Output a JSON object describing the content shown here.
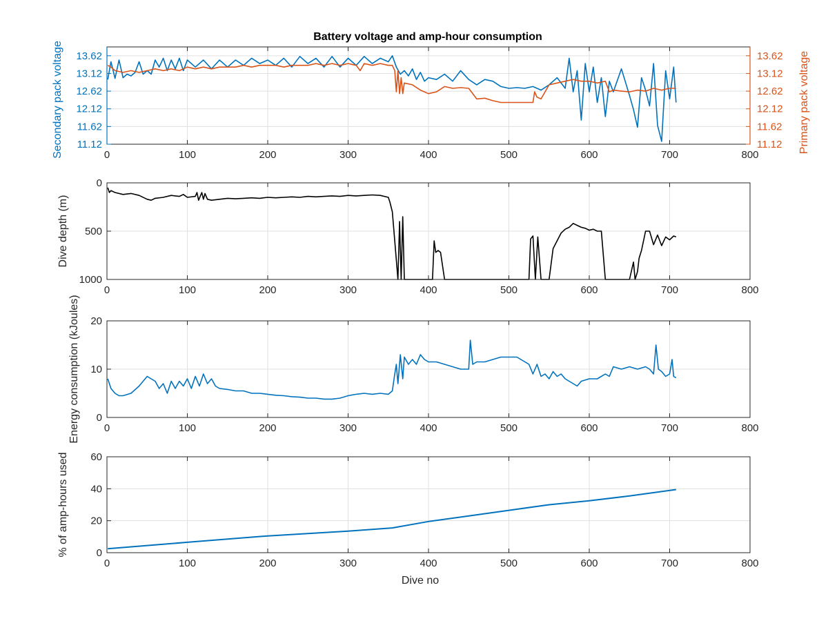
{
  "figure": {
    "title": "Battery voltage and amp-hour consumption",
    "colors": {
      "blue": "#0072bd",
      "orange": "#d95319",
      "black": "#000000",
      "axis": "#262626",
      "grid": "#dfdfdf"
    }
  },
  "chart_data": [
    {
      "type": "line",
      "title": "Battery voltage and amp-hour consumption",
      "xlabel": "",
      "ylabel": "Secondary pack voltage",
      "ylabel_right": "Primary pack voltage",
      "xlim": [
        0,
        800
      ],
      "ylim": [
        11.12,
        13.87
      ],
      "xticks": [
        0,
        100,
        200,
        300,
        400,
        500,
        600,
        700,
        800
      ],
      "yticks": [
        11.12,
        11.62,
        12.12,
        12.62,
        13.12,
        13.62
      ],
      "ytick_labels": [
        "11.12",
        "11.62",
        "12.12",
        "12.62",
        "13.12",
        "13.62"
      ],
      "grid": true,
      "series": [
        {
          "color": "#0072bd",
          "axis": "left",
          "x": [
            1,
            5,
            10,
            15,
            20,
            25,
            30,
            35,
            40,
            45,
            50,
            55,
            60,
            65,
            70,
            75,
            80,
            85,
            90,
            95,
            100,
            110,
            120,
            130,
            140,
            150,
            160,
            170,
            180,
            190,
            200,
            210,
            220,
            230,
            240,
            250,
            260,
            270,
            280,
            290,
            300,
            310,
            320,
            330,
            340,
            350,
            355,
            360,
            365,
            370,
            375,
            380,
            385,
            390,
            395,
            400,
            410,
            420,
            430,
            440,
            450,
            460,
            470,
            480,
            490,
            500,
            510,
            520,
            530,
            540,
            550,
            560,
            570,
            575,
            580,
            585,
            590,
            595,
            600,
            605,
            610,
            615,
            620,
            625,
            630,
            640,
            650,
            655,
            660,
            665,
            670,
            675,
            680,
            685,
            690,
            695,
            700,
            705,
            708
          ],
          "values": [
            12.95,
            13.45,
            12.98,
            13.5,
            13.0,
            13.1,
            13.05,
            13.15,
            13.45,
            13.1,
            13.2,
            13.1,
            13.5,
            13.3,
            13.55,
            13.2,
            13.5,
            13.25,
            13.55,
            13.2,
            13.5,
            13.3,
            13.5,
            13.25,
            13.5,
            13.3,
            13.5,
            13.35,
            13.55,
            13.4,
            13.5,
            13.35,
            13.55,
            13.3,
            13.6,
            13.4,
            13.55,
            13.3,
            13.6,
            13.3,
            13.55,
            13.35,
            13.6,
            13.4,
            13.55,
            13.45,
            13.62,
            13.3,
            13.1,
            13.2,
            13.05,
            13.25,
            12.95,
            13.15,
            12.9,
            13.0,
            12.95,
            13.1,
            12.9,
            13.2,
            12.95,
            12.8,
            12.95,
            12.9,
            12.75,
            12.7,
            12.72,
            12.7,
            12.75,
            12.65,
            12.8,
            13.0,
            12.7,
            13.55,
            12.6,
            13.2,
            11.8,
            13.4,
            12.6,
            13.3,
            12.3,
            13.0,
            11.9,
            12.9,
            12.6,
            13.25,
            12.5,
            12.1,
            11.6,
            13.0,
            12.65,
            12.2,
            13.4,
            11.65,
            11.2,
            13.2,
            12.4,
            13.3,
            12.3
          ]
        },
        {
          "color": "#d95319",
          "axis": "right",
          "x": [
            1,
            5,
            10,
            20,
            30,
            40,
            50,
            60,
            70,
            80,
            90,
            100,
            110,
            120,
            130,
            140,
            150,
            160,
            170,
            180,
            190,
            200,
            210,
            220,
            230,
            240,
            250,
            260,
            270,
            280,
            290,
            300,
            310,
            315,
            320,
            330,
            340,
            350,
            355,
            358,
            360,
            362,
            364,
            366,
            368,
            370,
            380,
            390,
            400,
            410,
            420,
            430,
            440,
            450,
            460,
            470,
            480,
            490,
            500,
            510,
            520,
            530,
            532,
            535,
            540,
            550,
            560,
            570,
            580,
            590,
            600,
            610,
            620,
            625,
            630,
            640,
            650,
            660,
            670,
            680,
            690,
            700,
            708
          ],
          "values": [
            13.35,
            13.3,
            13.2,
            13.15,
            13.2,
            13.15,
            13.2,
            13.25,
            13.2,
            13.25,
            13.2,
            13.3,
            13.25,
            13.3,
            13.25,
            13.3,
            13.3,
            13.3,
            13.35,
            13.3,
            13.35,
            13.35,
            13.35,
            13.3,
            13.35,
            13.35,
            13.35,
            13.4,
            13.35,
            13.4,
            13.35,
            13.4,
            13.35,
            13.2,
            13.4,
            13.35,
            13.4,
            13.35,
            13.35,
            13.2,
            12.6,
            13.2,
            12.55,
            13.0,
            12.55,
            12.85,
            12.8,
            12.65,
            12.55,
            12.6,
            12.75,
            12.7,
            12.72,
            12.7,
            12.4,
            12.42,
            12.35,
            12.3,
            12.3,
            12.3,
            12.3,
            12.3,
            12.6,
            12.45,
            12.4,
            12.8,
            12.85,
            12.9,
            12.95,
            12.9,
            12.9,
            12.85,
            12.9,
            12.6,
            12.65,
            12.62,
            12.6,
            12.65,
            12.62,
            12.7,
            12.65,
            12.7,
            12.7
          ]
        }
      ]
    },
    {
      "type": "line",
      "title": "",
      "xlabel": "",
      "ylabel": "Dive depth (m)",
      "xlim": [
        0,
        800
      ],
      "ylim": [
        0,
        1000
      ],
      "y_reversed": true,
      "xticks": [
        0,
        100,
        200,
        300,
        400,
        500,
        600,
        700,
        800
      ],
      "yticks": [
        0,
        500,
        1000
      ],
      "ytick_labels": [
        "0",
        "500",
        "1000"
      ],
      "grid": true,
      "series": [
        {
          "color": "#000000",
          "x": [
            1,
            3,
            5,
            10,
            20,
            30,
            40,
            50,
            55,
            60,
            70,
            80,
            90,
            95,
            100,
            110,
            112,
            114,
            118,
            120,
            122,
            125,
            130,
            140,
            150,
            160,
            170,
            180,
            190,
            200,
            210,
            220,
            230,
            240,
            250,
            260,
            270,
            280,
            290,
            300,
            310,
            320,
            330,
            340,
            350,
            352,
            355,
            358,
            360,
            362,
            364,
            366,
            368,
            370,
            372,
            375,
            380,
            390,
            400,
            405,
            407,
            409,
            412,
            415,
            420,
            430,
            440,
            450,
            460,
            470,
            480,
            490,
            500,
            510,
            520,
            525,
            527,
            530,
            533,
            536,
            540,
            545,
            550,
            555,
            560,
            565,
            570,
            575,
            580,
            585,
            590,
            595,
            600,
            605,
            610,
            615,
            620,
            625,
            630,
            640,
            650,
            655,
            657,
            660,
            662,
            665,
            670,
            675,
            680,
            685,
            690,
            695,
            700,
            705,
            708
          ],
          "values": [
            50,
            100,
            80,
            100,
            120,
            110,
            130,
            170,
            180,
            160,
            150,
            130,
            140,
            120,
            150,
            140,
            100,
            180,
            100,
            170,
            110,
            170,
            180,
            170,
            160,
            165,
            160,
            155,
            160,
            150,
            155,
            150,
            145,
            150,
            140,
            145,
            140,
            135,
            140,
            130,
            135,
            130,
            125,
            130,
            150,
            200,
            300,
            600,
            800,
            1000,
            400,
            1000,
            350,
            1000,
            1000,
            1000,
            1000,
            1000,
            1000,
            1000,
            600,
            720,
            700,
            720,
            1000,
            1000,
            1000,
            1000,
            1000,
            1000,
            1000,
            1000,
            1000,
            1000,
            1000,
            1000,
            580,
            550,
            1000,
            560,
            1000,
            1000,
            1000,
            680,
            600,
            520,
            480,
            460,
            420,
            440,
            460,
            470,
            490,
            480,
            500,
            500,
            1000,
            1000,
            1000,
            1000,
            1000,
            820,
            1000,
            920,
            780,
            700,
            500,
            500,
            640,
            540,
            650,
            560,
            590,
            550,
            560
          ]
        }
      ]
    },
    {
      "type": "line",
      "title": "",
      "xlabel": "",
      "ylabel": "Energy consumption (kJoules)",
      "xlim": [
        0,
        800
      ],
      "ylim": [
        0,
        20
      ],
      "xticks": [
        0,
        100,
        200,
        300,
        400,
        500,
        600,
        700,
        800
      ],
      "yticks": [
        0,
        10,
        20
      ],
      "ytick_labels": [
        "0",
        "10",
        "20"
      ],
      "grid": true,
      "series": [
        {
          "color": "#0072bd",
          "x": [
            1,
            5,
            10,
            15,
            20,
            30,
            40,
            45,
            50,
            55,
            60,
            65,
            70,
            75,
            80,
            85,
            90,
            95,
            100,
            105,
            110,
            115,
            120,
            125,
            130,
            135,
            140,
            150,
            160,
            170,
            180,
            190,
            200,
            210,
            220,
            230,
            240,
            250,
            260,
            270,
            280,
            290,
            300,
            310,
            320,
            330,
            340,
            350,
            355,
            358,
            360,
            362,
            365,
            368,
            370,
            375,
            380,
            385,
            390,
            395,
            400,
            410,
            420,
            430,
            440,
            450,
            452,
            455,
            460,
            470,
            480,
            490,
            500,
            510,
            520,
            525,
            530,
            535,
            540,
            545,
            550,
            555,
            560,
            565,
            570,
            575,
            580,
            585,
            590,
            600,
            610,
            615,
            620,
            625,
            630,
            640,
            650,
            660,
            670,
            675,
            680,
            683,
            686,
            690,
            695,
            700,
            703,
            705,
            708
          ],
          "values": [
            8.0,
            6.0,
            5.0,
            4.5,
            4.5,
            5.0,
            6.5,
            7.5,
            8.5,
            8.0,
            7.5,
            6.0,
            7.0,
            5.0,
            7.5,
            6.0,
            7.5,
            6.5,
            8.0,
            6.0,
            8.5,
            6.5,
            9.0,
            7.0,
            8.0,
            6.5,
            6.0,
            5.8,
            5.5,
            5.5,
            5.0,
            5.0,
            4.8,
            4.6,
            4.5,
            4.3,
            4.2,
            4.0,
            4.0,
            3.8,
            3.8,
            4.0,
            4.5,
            4.8,
            5.0,
            4.8,
            5.0,
            4.8,
            5.5,
            9.0,
            11.0,
            7.0,
            13.0,
            8.0,
            12.5,
            11.0,
            12.0,
            11.0,
            13.0,
            12.0,
            11.5,
            11.5,
            11.0,
            10.5,
            10.0,
            10.0,
            16.0,
            11.0,
            11.5,
            11.5,
            12.0,
            12.5,
            12.5,
            12.5,
            11.5,
            11.0,
            9.0,
            11.0,
            8.5,
            9.0,
            8.0,
            9.5,
            8.5,
            9.0,
            8.0,
            7.5,
            7.0,
            6.5,
            7.5,
            8.0,
            8.0,
            8.5,
            9.0,
            8.5,
            10.5,
            10.0,
            10.5,
            10.0,
            10.5,
            10.0,
            9.0,
            15.0,
            10.0,
            9.5,
            8.5,
            9.0,
            12.0,
            8.5,
            8.2
          ]
        }
      ]
    },
    {
      "type": "line",
      "title": "",
      "xlabel": "Dive no",
      "ylabel": "% of amp-hours used",
      "xlim": [
        0,
        800
      ],
      "ylim": [
        0,
        60
      ],
      "xticks": [
        0,
        100,
        200,
        300,
        400,
        500,
        600,
        700,
        800
      ],
      "yticks": [
        0,
        20,
        40,
        60
      ],
      "ytick_labels": [
        "0",
        "20",
        "40",
        "60"
      ],
      "grid": true,
      "series": [
        {
          "color": "#0072bd",
          "x": [
            1,
            100,
            200,
            300,
            355,
            400,
            450,
            500,
            550,
            600,
            650,
            708
          ],
          "values": [
            2.5,
            6.5,
            10.5,
            13.5,
            15.5,
            19.5,
            23.0,
            26.5,
            30.0,
            32.5,
            35.5,
            39.5
          ]
        }
      ]
    }
  ]
}
